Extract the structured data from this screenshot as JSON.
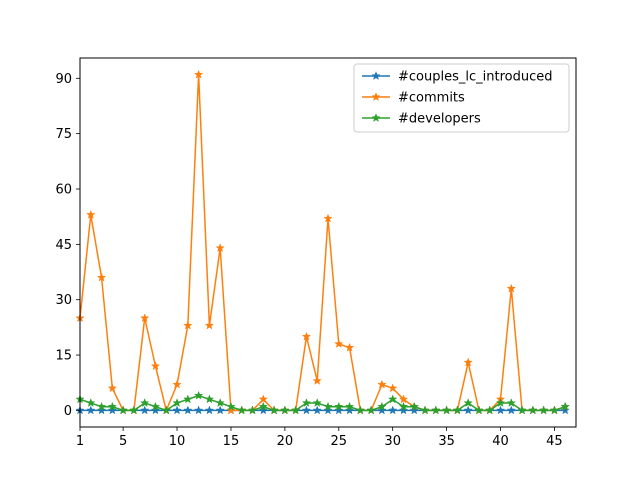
{
  "chart_data": {
    "type": "line",
    "title": "",
    "xlabel": "",
    "ylabel": "",
    "x": [
      1,
      2,
      3,
      4,
      5,
      6,
      7,
      8,
      9,
      10,
      11,
      12,
      13,
      14,
      15,
      16,
      17,
      18,
      19,
      20,
      21,
      22,
      23,
      24,
      25,
      26,
      27,
      28,
      29,
      30,
      31,
      32,
      33,
      34,
      35,
      36,
      37,
      38,
      39,
      40,
      41,
      42,
      43,
      44,
      45,
      46
    ],
    "xlim": [
      1,
      47
    ],
    "ylim": [
      -4.5,
      95.5
    ],
    "xticks": [
      1,
      5,
      10,
      15,
      20,
      25,
      30,
      35,
      40,
      45
    ],
    "yticks": [
      0,
      15,
      30,
      45,
      60,
      75,
      90
    ],
    "marker": "star",
    "legend_position": "top-right",
    "series": [
      {
        "name": "#couples_lc_introduced",
        "color": "#1f77b4",
        "values": [
          0,
          0,
          0,
          0,
          0,
          0,
          0,
          0,
          0,
          0,
          0,
          0,
          0,
          0,
          0,
          0,
          0,
          0,
          0,
          0,
          0,
          0,
          0,
          0,
          0,
          0,
          0,
          0,
          0,
          0,
          0,
          0,
          0,
          0,
          0,
          0,
          0,
          0,
          0,
          0,
          0,
          0,
          0,
          0,
          0,
          0
        ]
      },
      {
        "name": "#commits",
        "color": "#ff7f0e",
        "values": [
          25,
          53,
          36,
          6,
          0,
          0,
          25,
          12,
          0,
          7,
          23,
          91,
          23,
          44,
          0,
          0,
          0,
          3,
          0,
          0,
          0,
          20,
          8,
          52,
          18,
          17,
          0,
          0,
          7,
          6,
          3,
          1,
          0,
          0,
          0,
          0,
          13,
          0,
          0,
          3,
          33,
          0,
          0,
          0,
          0,
          1
        ]
      },
      {
        "name": "#developers",
        "color": "#2ca02c",
        "values": [
          3,
          2,
          1,
          1,
          0,
          0,
          2,
          1,
          0,
          2,
          3,
          4,
          3,
          2,
          1,
          0,
          0,
          1,
          0,
          0,
          0,
          2,
          2,
          1,
          1,
          1,
          0,
          0,
          1,
          3,
          1,
          1,
          0,
          0,
          0,
          0,
          2,
          0,
          0,
          2,
          2,
          0,
          0,
          0,
          0,
          1
        ]
      }
    ]
  }
}
